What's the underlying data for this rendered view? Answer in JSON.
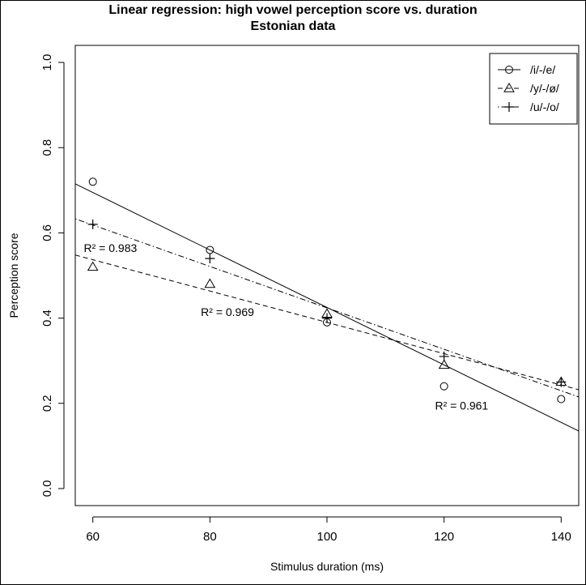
{
  "title_line1": "Linear regression: high vowel perception score vs. duration",
  "title_line2": "Estonian data",
  "chart_data": {
    "type": "scatter",
    "title": "Linear regression: high vowel perception score vs. duration Estonian data",
    "xlabel": "Stimulus duration (ms)",
    "ylabel": "Perception score",
    "xlim": [
      57,
      143
    ],
    "ylim": [
      -0.04,
      1.04
    ],
    "x_ticks": [
      60,
      80,
      100,
      120,
      140
    ],
    "x_tick_labels": [
      "60",
      "80",
      "100",
      "120",
      "140"
    ],
    "y_ticks": [
      0.0,
      0.2,
      0.4,
      0.6,
      0.8,
      1.0
    ],
    "y_tick_labels": [
      "0.0",
      "0.2",
      "0.4",
      "0.6",
      "0.8",
      "1.0"
    ],
    "grid": false,
    "legend_position": "top-right",
    "series": [
      {
        "name": "/i/-/e/",
        "marker": "circle",
        "line_style": "solid",
        "points": [
          [
            60,
            0.72
          ],
          [
            80,
            0.56
          ],
          [
            100,
            0.39
          ],
          [
            120,
            0.24
          ],
          [
            140,
            0.21
          ]
        ],
        "fit_line": {
          "x0": 57,
          "y0": 0.715,
          "x1": 143,
          "y1": 0.135
        }
      },
      {
        "name": "/y/-/ø/",
        "marker": "triangle",
        "line_style": "dashed",
        "points": [
          [
            60,
            0.52
          ],
          [
            80,
            0.48
          ],
          [
            100,
            0.41
          ],
          [
            120,
            0.29
          ],
          [
            140,
            0.25
          ]
        ],
        "fit_line": {
          "x0": 57,
          "y0": 0.548,
          "x1": 143,
          "y1": 0.232
        }
      },
      {
        "name": "/u/-/o/",
        "marker": "plus",
        "line_style": "dotdash",
        "points": [
          [
            60,
            0.62
          ],
          [
            80,
            0.54
          ],
          [
            100,
            0.4
          ],
          [
            120,
            0.31
          ],
          [
            140,
            0.25
          ]
        ],
        "fit_line": {
          "x0": 57,
          "y0": 0.633,
          "x1": 143,
          "y1": 0.215
        }
      }
    ],
    "annotations": [
      {
        "text": "R² = 0.983",
        "x": 63,
        "y": 0.555
      },
      {
        "text": "R² = 0.969",
        "x": 83,
        "y": 0.405
      },
      {
        "text": "R² = 0.961",
        "x": 123,
        "y": 0.185
      }
    ]
  }
}
